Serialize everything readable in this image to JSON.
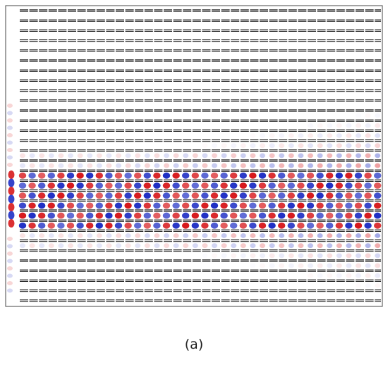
{
  "caption": "(a)"
}
